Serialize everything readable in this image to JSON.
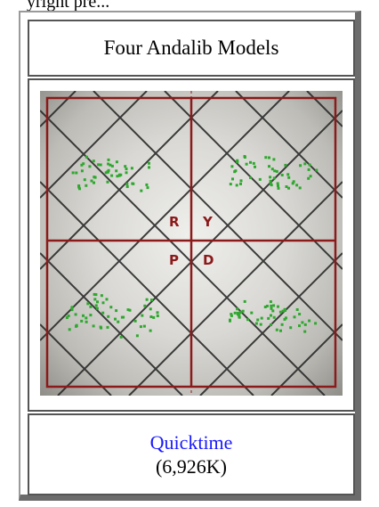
{
  "header": {
    "fragment": "yright pre..."
  },
  "panel": {
    "title": "Four Andalib Models",
    "figure": {
      "letters": [
        "R",
        "Y",
        "P",
        "D"
      ]
    },
    "download": {
      "link_label": "Quicktime",
      "size": "(6,926K)"
    }
  },
  "colors": {
    "grid": "#8b1a1a",
    "points": "#2fa82f",
    "link": "#1a1aff"
  }
}
